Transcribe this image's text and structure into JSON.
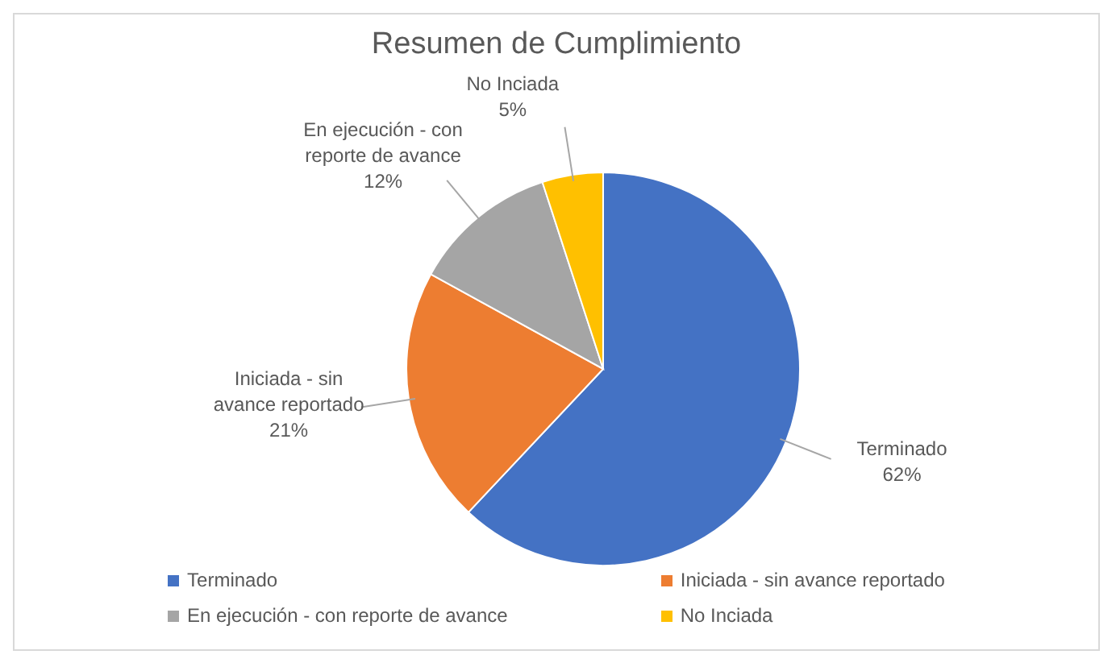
{
  "chart_data": {
    "type": "pie",
    "title": "Resumen de Cumplimiento",
    "categories": [
      "Terminado",
      "Iniciada - sin avance reportado",
      "En ejecución - con reporte de avance",
      "No Inciada"
    ],
    "values": [
      62,
      21,
      12,
      5
    ],
    "colors": [
      "#4472c4",
      "#ed7d31",
      "#a5a5a5",
      "#ffc000"
    ],
    "value_labels": [
      "62%",
      "21%",
      "12%",
      "5%"
    ],
    "legend": "bottom"
  }
}
